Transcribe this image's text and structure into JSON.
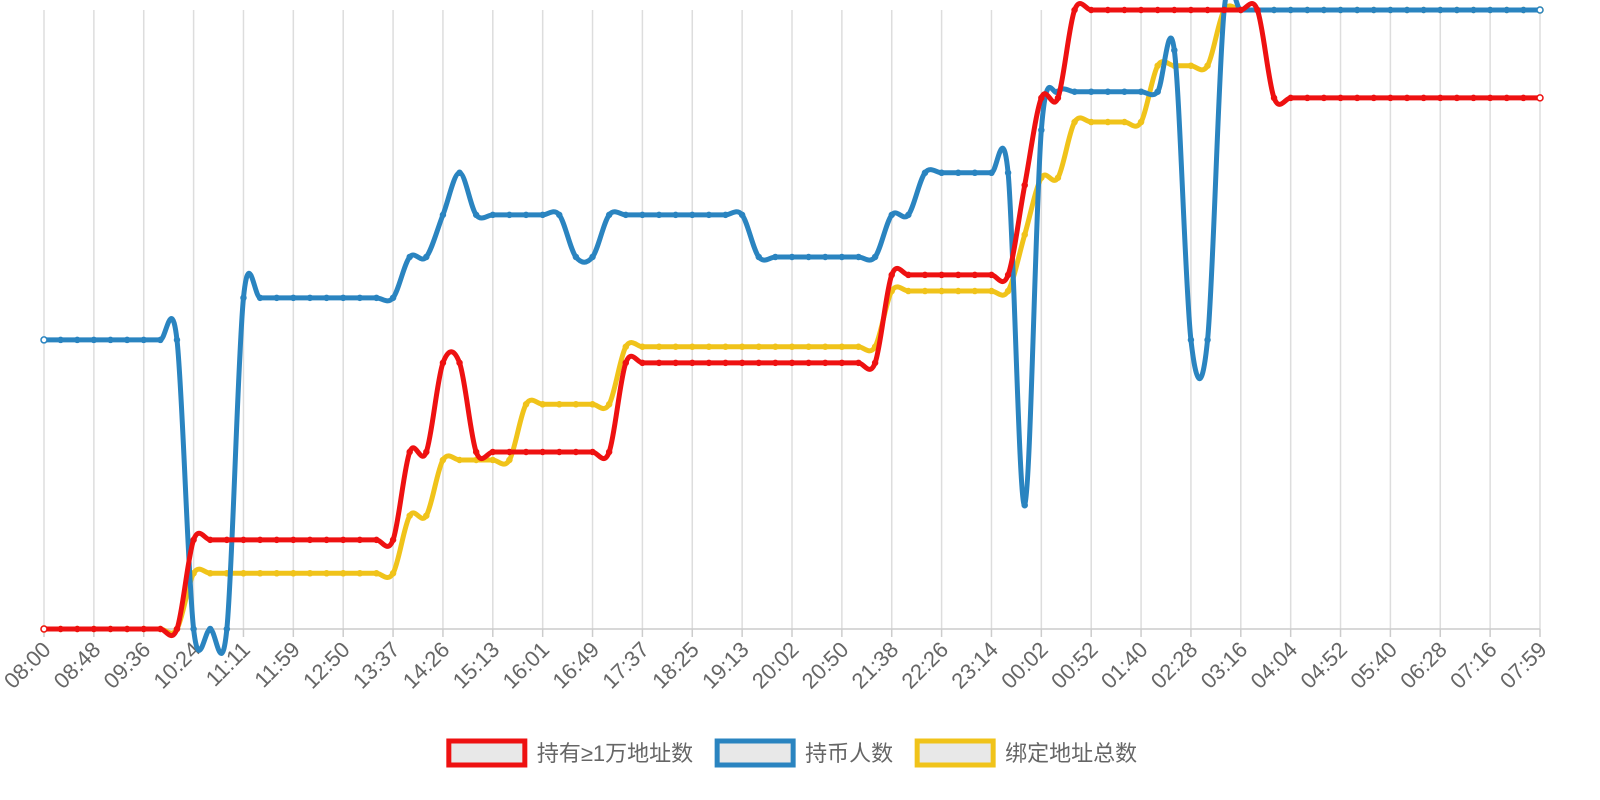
{
  "chart_data": {
    "type": "line",
    "smooth": true,
    "grid": true,
    "legend": "bottom",
    "ylim": [
      0,
      100
    ],
    "categories": [
      "08:00",
      null,
      null,
      "08:48",
      null,
      null,
      "09:36",
      null,
      null,
      "10:24",
      null,
      null,
      "11:11",
      null,
      null,
      "11:59",
      null,
      null,
      "12:50",
      null,
      null,
      "13:37",
      null,
      null,
      "14:26",
      null,
      null,
      "15:13",
      null,
      null,
      "16:01",
      null,
      null,
      "16:49",
      null,
      null,
      "17:37",
      null,
      null,
      "18:25",
      null,
      null,
      "19:13",
      null,
      null,
      "20:02",
      null,
      null,
      "20:50",
      null,
      null,
      "21:38",
      null,
      null,
      "22:26",
      null,
      null,
      "23:14",
      null,
      null,
      "00:02",
      null,
      null,
      "00:52",
      null,
      null,
      "01:40",
      null,
      null,
      "02:28",
      null,
      null,
      "03:16",
      null,
      null,
      "04:04",
      null,
      null,
      "04:52",
      null,
      null,
      "05:40",
      null,
      null,
      "06:28",
      null,
      null,
      "07:16",
      null,
      null,
      "07:59"
    ],
    "series": [
      {
        "name": "持有≥1万地址数",
        "color": "#ee1111",
        "values": [
          0,
          0,
          0,
          0,
          0,
          0,
          0,
          0,
          0,
          14.4,
          14.4,
          14.4,
          14.4,
          14.4,
          14.4,
          14.4,
          14.4,
          14.4,
          14.4,
          14.4,
          14.4,
          14.4,
          28.6,
          28.6,
          43,
          43,
          28.6,
          28.6,
          28.6,
          28.6,
          28.6,
          28.6,
          28.6,
          28.6,
          28.6,
          43,
          43,
          43,
          43,
          43,
          43,
          43,
          43,
          43,
          43,
          43,
          43,
          43,
          43,
          43,
          43,
          57.2,
          57.2,
          57.2,
          57.2,
          57.2,
          57.2,
          57.2,
          57.2,
          71.7,
          85.8,
          85.8,
          100,
          100,
          100,
          100,
          100,
          100,
          100,
          100,
          100,
          100,
          100,
          100,
          85.8,
          85.8,
          85.8,
          85.8,
          85.8,
          85.8,
          85.8,
          85.8,
          85.8,
          85.8,
          85.8,
          85.8,
          85.8,
          85.8,
          85.8,
          85.8,
          85.8
        ]
      },
      {
        "name": "持币人数",
        "color": "#2a84c0",
        "values": [
          46.7,
          46.7,
          46.7,
          46.7,
          46.7,
          46.7,
          46.7,
          46.7,
          46.7,
          0,
          0,
          0,
          53.5,
          53.5,
          53.5,
          53.5,
          53.5,
          53.5,
          53.5,
          53.5,
          53.5,
          53.5,
          60.1,
          60.1,
          66.9,
          73.7,
          66.9,
          66.9,
          66.9,
          66.9,
          66.9,
          66.9,
          60.1,
          60.1,
          66.9,
          66.9,
          66.9,
          66.9,
          66.9,
          66.9,
          66.9,
          66.9,
          66.9,
          60.1,
          60.1,
          60.1,
          60.1,
          60.1,
          60.1,
          60.1,
          60.1,
          66.9,
          66.9,
          73.7,
          73.7,
          73.7,
          73.7,
          73.7,
          73.7,
          20,
          80.6,
          86.8,
          86.8,
          86.8,
          86.8,
          86.8,
          86.8,
          86.8,
          93.5,
          46.7,
          46.7,
          100,
          100,
          100,
          100,
          100,
          100,
          100,
          100,
          100,
          100,
          100,
          100,
          100,
          100,
          100,
          100,
          100,
          100,
          100,
          100
        ]
      },
      {
        "name": "绑定地址总数",
        "color": "#f0c31a",
        "values": [
          0,
          0,
          0,
          0,
          0,
          0,
          0,
          0,
          0,
          9,
          9,
          9,
          9,
          9,
          9,
          9,
          9,
          9,
          9,
          9,
          9,
          9,
          18.3,
          18.3,
          27.3,
          27.3,
          27.3,
          27.3,
          27.3,
          36.3,
          36.3,
          36.3,
          36.3,
          36.3,
          36.3,
          45.6,
          45.6,
          45.6,
          45.6,
          45.6,
          45.6,
          45.6,
          45.6,
          45.6,
          45.6,
          45.6,
          45.6,
          45.6,
          45.6,
          45.6,
          45.6,
          54.6,
          54.6,
          54.6,
          54.6,
          54.6,
          54.6,
          54.6,
          54.6,
          63.7,
          72.9,
          72.9,
          81.9,
          81.9,
          81.9,
          81.9,
          81.9,
          91,
          91,
          91,
          91,
          100,
          100,
          100,
          100,
          100,
          100,
          100,
          100,
          100,
          100,
          100,
          100,
          100,
          100,
          100,
          100,
          100,
          100,
          100,
          100
        ]
      }
    ]
  }
}
